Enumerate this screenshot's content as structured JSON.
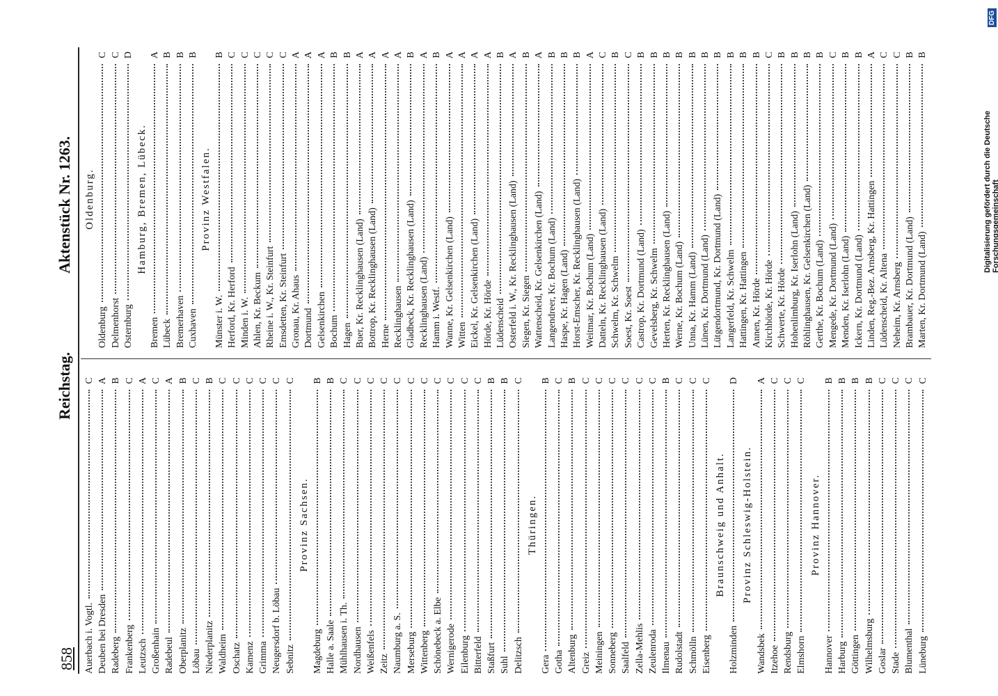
{
  "header": {
    "page_number": "858",
    "left": "Reichstag.",
    "right": "Aktenstück Nr. 1263."
  },
  "sidebar": {
    "text": "Digitalisierung gefördert durch die Deutsche Forschungsgemeinschaft",
    "logo": "DFG"
  },
  "columns": [
    {
      "sections": [
        {
          "entries": [
            {
              "name": "Auerbach i. Vogtl.",
              "class": "C"
            },
            {
              "name": "Deuben bei Dresden",
              "class": "A"
            },
            {
              "name": "Radeberg",
              "class": "B"
            },
            {
              "name": "Frankenberg",
              "class": "C"
            },
            {
              "name": "Leutzsch",
              "class": "A"
            },
            {
              "name": "Großenhain",
              "class": "C"
            },
            {
              "name": "Radebeul",
              "class": "A"
            },
            {
              "name": "Oberplanitz",
              "class": "B"
            },
            {
              "name": "Löbau",
              "class": "C"
            },
            {
              "name": "Niederplanitz",
              "class": "B"
            },
            {
              "name": "Waldheim",
              "class": "C"
            },
            {
              "name": "Oschatz",
              "class": "C"
            },
            {
              "name": "Kamenz",
              "class": "C"
            },
            {
              "name": "Grimma",
              "class": "C"
            },
            {
              "name": "Neugersdorf b. Löbau",
              "class": "C"
            },
            {
              "name": "Sebnitz",
              "class": "C"
            }
          ]
        },
        {
          "heading": "Provinz Sachsen.",
          "entries": [
            {
              "name": "Magdeburg",
              "class": "B"
            },
            {
              "name": "Halle a. Saale",
              "class": "B"
            },
            {
              "name": "Mühlhausen i. Th.",
              "class": "C"
            },
            {
              "name": "Nordhausen",
              "class": "C"
            },
            {
              "name": "Weißenfels",
              "class": "C"
            },
            {
              "name": "Zeitz",
              "class": "C"
            },
            {
              "name": "Naumburg a. S.",
              "class": "C"
            },
            {
              "name": "Merseburg",
              "class": "C"
            },
            {
              "name": "Wittenberg",
              "class": "C"
            },
            {
              "name": "Schönebeck a. Elbe",
              "class": "C"
            },
            {
              "name": "Wernigerode",
              "class": "C"
            },
            {
              "name": "Eilenburg",
              "class": "C"
            },
            {
              "name": "Bitterfeld",
              "class": "C"
            },
            {
              "name": "Staßfurt",
              "class": "B"
            },
            {
              "name": "Suhl",
              "class": "B"
            },
            {
              "name": "Delitzsch",
              "class": "C"
            }
          ]
        },
        {
          "heading": "Thüringen.",
          "entries": [
            {
              "name": "Gera",
              "class": "B"
            },
            {
              "name": "Gotha",
              "class": "C"
            },
            {
              "name": "Altenburg",
              "class": "B"
            },
            {
              "name": "Greiz",
              "class": "C"
            },
            {
              "name": "Meiningen",
              "class": "C"
            },
            {
              "name": "Sonneberg",
              "class": "C"
            },
            {
              "name": "Saalfeld",
              "class": "C"
            },
            {
              "name": "Zella-Mehlis",
              "class": "C"
            },
            {
              "name": "Zeulenroda",
              "class": "C"
            },
            {
              "name": "Ilmenau",
              "class": "B"
            },
            {
              "name": "Rudolstadt",
              "class": "C"
            },
            {
              "name": "Schmölln",
              "class": "C"
            },
            {
              "name": "Eisenberg",
              "class": "C"
            }
          ]
        },
        {
          "heading": "Braunschweig und Anhalt.",
          "entries": [
            {
              "name": "Holzminden",
              "class": "D"
            }
          ]
        },
        {
          "heading": "Provinz Schleswig-Holstein.",
          "entries": [
            {
              "name": "Wandsbek",
              "class": "A"
            },
            {
              "name": "Itzehoe",
              "class": "C"
            },
            {
              "name": "Rendsburg",
              "class": "C"
            },
            {
              "name": "Elmshorn",
              "class": "C"
            }
          ]
        },
        {
          "heading": "Provinz Hannover.",
          "entries": [
            {
              "name": "Hannover",
              "class": "B"
            },
            {
              "name": "Harburg",
              "class": "B"
            },
            {
              "name": "Göttingen",
              "class": "B"
            },
            {
              "name": "Wilhelmsburg",
              "class": "B"
            },
            {
              "name": "Goslar",
              "class": "C"
            },
            {
              "name": "Stade",
              "class": "C"
            },
            {
              "name": "Blumenthal",
              "class": "C"
            },
            {
              "name": "Lüneburg",
              "class": "C"
            }
          ]
        }
      ]
    },
    {
      "sections": [
        {
          "heading": "Oldenburg.",
          "entries": [
            {
              "name": "Oldenburg",
              "class": "C"
            },
            {
              "name": "Delmenhorst",
              "class": "C"
            },
            {
              "name": "Osternburg",
              "class": "D"
            }
          ]
        },
        {
          "heading": "Hamburg, Bremen, Lübeck.",
          "entries": [
            {
              "name": "Bremen",
              "class": "A"
            },
            {
              "name": "Lübeck",
              "class": "B"
            },
            {
              "name": "Bremerhaven",
              "class": "B"
            },
            {
              "name": "Cuxhaven",
              "class": "B"
            }
          ]
        },
        {
          "heading": "Provinz Westfalen.",
          "entries": [
            {
              "name": "Münster i. W.",
              "class": "B"
            },
            {
              "name": "Herford, Kr. Herford",
              "class": "C"
            },
            {
              "name": "Minden i. W.",
              "class": "C"
            },
            {
              "name": "Ahlen, Kr. Beckum",
              "class": "C"
            },
            {
              "name": "Rheine i. W., Kr. Steinfurt",
              "class": "C"
            },
            {
              "name": "Emsdetten, Kr. Steinfurt",
              "class": "C"
            },
            {
              "name": "Gronau, Kr. Ahaus",
              "class": "A"
            },
            {
              "name": "Dortmund",
              "class": "A"
            },
            {
              "name": "Gelsenkirchen",
              "class": "A"
            },
            {
              "name": "Bochum",
              "class": "B"
            },
            {
              "name": "Hagen",
              "class": "B"
            },
            {
              "name": "Buer, Kr. Recklinghausen (Land)",
              "class": "A"
            },
            {
              "name": "Bottrop, Kr. Recklinghausen (Land)",
              "class": "A"
            },
            {
              "name": "Herne",
              "class": "A"
            },
            {
              "name": "Recklinghausen",
              "class": "A"
            },
            {
              "name": "Gladbeck, Kr. Recklinghausen (Land)",
              "class": "B"
            },
            {
              "name": "Recklinghausen (Land)",
              "class": "A"
            },
            {
              "name": "Hamm i. Westf.",
              "class": "B"
            },
            {
              "name": "Wanne, Kr. Gelsenkirchen (Land)",
              "class": "A"
            },
            {
              "name": "Witten",
              "class": "A"
            },
            {
              "name": "Eickel, Kr. Gelsenkirchen (Land)",
              "class": "A"
            },
            {
              "name": "Hörde, Kr. Hörde",
              "class": "A"
            },
            {
              "name": "Lüdenscheid",
              "class": "B"
            },
            {
              "name": "Osterfeld i. W., Kr. Recklinghausen (Land)",
              "class": "A"
            },
            {
              "name": "Siegen, Kr. Siegen",
              "class": "B"
            },
            {
              "name": "Wattenscheid, Kr. Gelsenkirchen (Land)",
              "class": "A"
            },
            {
              "name": "Langendreer, Kr. Bochum (Land)",
              "class": "B"
            },
            {
              "name": "Haspe, Kr. Hagen (Land)",
              "class": "B"
            },
            {
              "name": "Horst-Emscher, Kr. Recklinghausen (Land)",
              "class": "B"
            },
            {
              "name": "Weitmar, Kr. Bochum (Land)",
              "class": "A"
            },
            {
              "name": "Datteln, Kr. Recklinghausen (Land)",
              "class": "C"
            },
            {
              "name": "Schwelm, Kr. Schwelm",
              "class": "B"
            },
            {
              "name": "Soest, Kr. Soest",
              "class": "C"
            },
            {
              "name": "Castrop, Kr. Dortmund (Land)",
              "class": "B"
            },
            {
              "name": "Gevelsberg, Kr. Schwelm",
              "class": "B"
            },
            {
              "name": "Herten, Kr. Recklinghausen (Land)",
              "class": "B"
            },
            {
              "name": "Werne, Kr. Bochum (Land)",
              "class": "B"
            },
            {
              "name": "Unna, Kr. Hamm (Land)",
              "class": "B"
            },
            {
              "name": "Lünen, Kr. Dortmund (Land)",
              "class": "B"
            },
            {
              "name": "Lütgendortmund, Kr. Dortmund (Land)",
              "class": "B"
            },
            {
              "name": "Langerfeld, Kr. Schwelm",
              "class": "B"
            },
            {
              "name": "Hattingen, Kr. Hattingen",
              "class": "B"
            },
            {
              "name": "Annen, Kr. Hörde",
              "class": "B"
            },
            {
              "name": "Kirchhörde, Kr. Hörde",
              "class": "C"
            },
            {
              "name": "Schwerte, Kr. Hörde",
              "class": "B"
            },
            {
              "name": "Hohenlimburg, Kr. Iserlohn (Land)",
              "class": "B"
            },
            {
              "name": "Röhlinghausen, Kr. Gelsenkirchen (Land)",
              "class": "B"
            },
            {
              "name": "Gerthe, Kr. Bochum (Land)",
              "class": "B"
            },
            {
              "name": "Mengede, Kr. Dortmund (Land)",
              "class": "C"
            },
            {
              "name": "Menden, Kr. Iserlohn (Land)",
              "class": "B"
            },
            {
              "name": "Ickern, Kr. Dortmund (Land)",
              "class": "B"
            },
            {
              "name": "Linden, Reg.-Bez. Arnsberg, Kr. Hattingen",
              "class": "A"
            },
            {
              "name": "Lüdenscheid, Kr. Altena",
              "class": "C"
            },
            {
              "name": "Neheim, Kr. Arnsberg",
              "class": "C"
            },
            {
              "name": "Brambauer, Kr. Dortmund (Land)",
              "class": "B"
            },
            {
              "name": "Marten, Kr. Dortmund (Land)",
              "class": "B"
            }
          ]
        }
      ]
    }
  ]
}
